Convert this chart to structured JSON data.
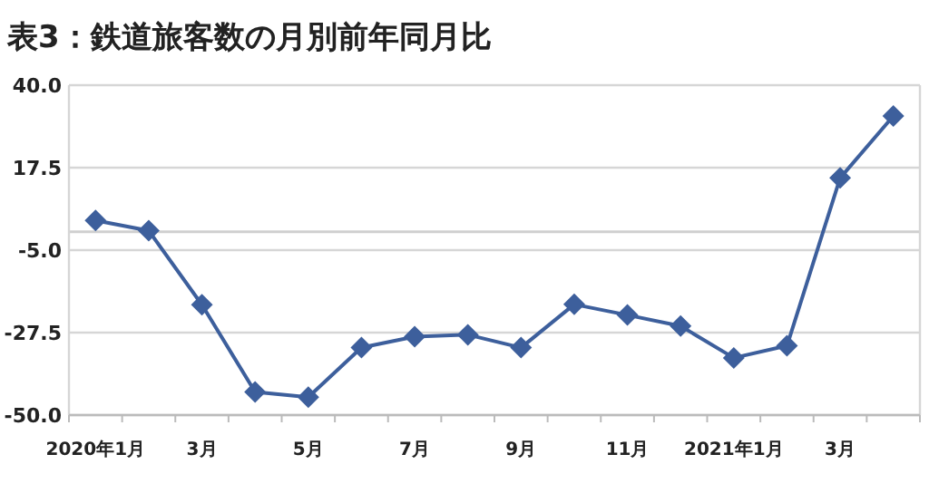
{
  "chart_data": {
    "type": "line",
    "title": "表3：鉄道旅客数の月別前年同月比",
    "categories": [
      "2020年1月",
      null,
      "3月",
      null,
      "5月",
      null,
      "7月",
      null,
      "9月",
      null,
      "11月",
      null,
      "2021年1月",
      null,
      "3月",
      null
    ],
    "series": [
      {
        "color": "#3d5f9c",
        "values": [
          3.1,
          0.3,
          -19.9,
          -43.7,
          -45.1,
          -31.6,
          -28.6,
          -28.1,
          -31.6,
          -19.8,
          -22.7,
          -25.7,
          -34.4,
          -31.1,
          14.7,
          31.6
        ]
      }
    ],
    "ylim": [
      -50,
      40
    ],
    "yticks": [
      {
        "value": -50,
        "label": "-50.0"
      },
      {
        "value": -27.5,
        "label": "-27.5"
      },
      {
        "value": -5,
        "label": "-5.0"
      },
      {
        "value": 17.5,
        "label": "17.5"
      },
      {
        "value": 40,
        "label": "40.0"
      }
    ],
    "ref_lines": [
      {
        "axis": "y",
        "value": 0,
        "color": "#d0d0d0"
      }
    ],
    "grid": "y",
    "marker": "diamond",
    "line_style": "solid"
  }
}
